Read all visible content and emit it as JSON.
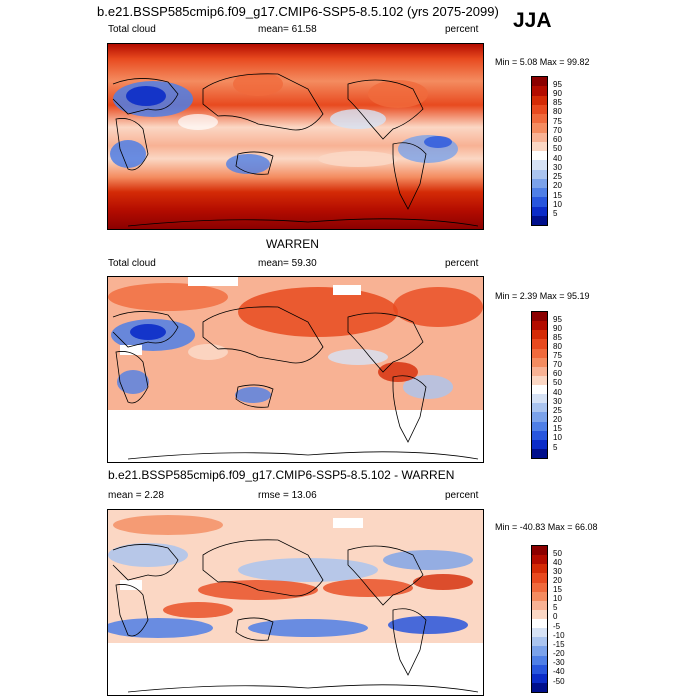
{
  "header": {
    "title": "b.e21.BSSP585cmip6.f09_g17.CMIP6-SSP5-8.5.102 (yrs 2075-2099)",
    "season": "JJA"
  },
  "panels": [
    {
      "id": "model",
      "left_label": "Total cloud",
      "center_label": "mean=  61.58",
      "right_label": "percent",
      "minmax": "Min =   5.08 Max =  99.82",
      "colorbar_labels": [
        "95",
        "90",
        "85",
        "80",
        "75",
        "70",
        "60",
        "50",
        "40",
        "30",
        "25",
        "20",
        "15",
        "10",
        "5"
      ]
    },
    {
      "id": "obs",
      "title": "WARREN",
      "left_label": "Total cloud",
      "center_label": "mean=  59.30",
      "right_label": "percent",
      "minmax": "Min =   2.39 Max =  95.19",
      "colorbar_labels": [
        "95",
        "90",
        "85",
        "80",
        "75",
        "70",
        "60",
        "50",
        "40",
        "30",
        "25",
        "20",
        "15",
        "10",
        "5"
      ]
    },
    {
      "id": "diff",
      "title": "b.e21.BSSP585cmip6.f09_g17.CMIP6-SSP5-8.5.102 - WARREN",
      "left_label": "mean =   2.28",
      "center_label": "rmse =  13.06",
      "right_label": "percent",
      "minmax": "Min = -40.83 Max =  66.08",
      "colorbar_labels": [
        "50",
        "40",
        "30",
        "20",
        "15",
        "10",
        "5",
        "0",
        "-5",
        "-10",
        "-15",
        "-20",
        "-30",
        "-40",
        "-50"
      ]
    }
  ],
  "colors": {
    "scale": [
      "#8b0000",
      "#b30c00",
      "#d42b06",
      "#e84a1f",
      "#f06a3c",
      "#f48c60",
      "#f8b294",
      "#fbd7c4",
      "#ffffff",
      "#d6e2f5",
      "#aac4ef",
      "#7ba2ea",
      "#4f7fe6",
      "#2856dd",
      "#0b2cc8",
      "#000f8c"
    ]
  }
}
